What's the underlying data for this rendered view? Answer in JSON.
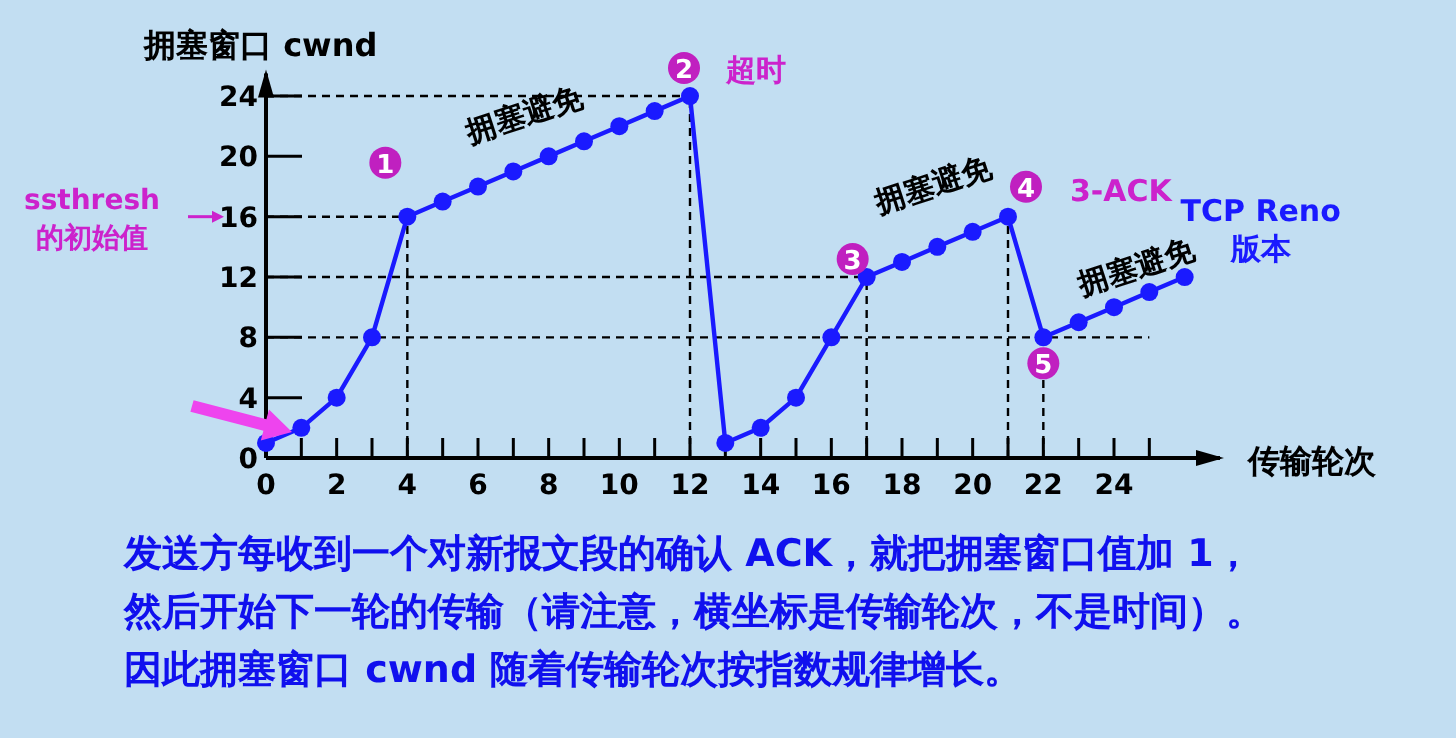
{
  "chart_data": {
    "type": "line",
    "ylabel": "拥塞窗口  cwnd",
    "xlabel": "传输轮次",
    "x": [
      0,
      1,
      2,
      3,
      4,
      5,
      6,
      7,
      8,
      9,
      10,
      11,
      12,
      13,
      14,
      15,
      16,
      17,
      18,
      19,
      20,
      21,
      22,
      23,
      24,
      25,
      26
    ],
    "series": [
      {
        "color": "#1a1aff",
        "values": [
          1,
          2,
          4,
          8,
          16,
          17,
          18,
          19,
          20,
          21,
          22,
          23,
          24,
          1,
          2,
          4,
          8,
          12,
          13,
          14,
          15,
          16,
          8,
          9,
          10,
          11,
          12
        ]
      }
    ],
    "marker": "circle",
    "line_style": "solid",
    "xlim": [
      0,
      27
    ],
    "ylim": [
      0,
      25.5
    ],
    "xticks": [
      0,
      {
        "value": 1,
        "label": null
      },
      2,
      {
        "value": 3,
        "label": null
      },
      4,
      {
        "value": 5,
        "label": null
      },
      6,
      {
        "value": 7,
        "label": null
      },
      8,
      {
        "value": 9,
        "label": null
      },
      10,
      {
        "value": 11,
        "label": null
      },
      12,
      {
        "value": 13,
        "label": null
      },
      14,
      {
        "value": 15,
        "label": null
      },
      16,
      {
        "value": 17,
        "label": null
      },
      18,
      {
        "value": 19,
        "label": null
      },
      20,
      {
        "value": 21,
        "label": null
      },
      22,
      {
        "value": 23,
        "label": null
      },
      24,
      {
        "value": 25,
        "label": null
      }
    ],
    "yticks": [
      0,
      4,
      8,
      12,
      16,
      20,
      24
    ],
    "ref_lines": [
      {
        "axis": "y",
        "value": 24,
        "line_style": "dashed",
        "color": "#000000"
      },
      {
        "axis": "y",
        "value": 16,
        "line_style": "dashed",
        "color": "#000000"
      },
      {
        "axis": "y",
        "value": 12,
        "line_style": "dashed",
        "color": "#000000"
      },
      {
        "axis": "y",
        "value": 8,
        "line_style": "dashed",
        "color": "#000000"
      },
      {
        "axis": "x",
        "value": 4,
        "line_style": "dashed",
        "color": "#000000"
      },
      {
        "axis": "x",
        "value": 12,
        "line_style": "dashed",
        "color": "#000000"
      },
      {
        "axis": "x",
        "value": 17,
        "line_style": "dashed",
        "color": "#000000"
      },
      {
        "axis": "x",
        "value": 21,
        "line_style": "dashed",
        "color": "#000000"
      },
      {
        "axis": "x",
        "value": 22,
        "line_style": "dashed",
        "color": "#000000"
      }
    ],
    "annotations": [
      {
        "text": "1",
        "x": 4,
        "y": 16
      },
      {
        "text": "拥塞避免",
        "x": 6,
        "y": 18
      },
      {
        "text": "2",
        "x": 12,
        "y": 24
      },
      {
        "text": "超时",
        "x": 12,
        "y": 24
      },
      {
        "text": "3",
        "x": 17,
        "y": 12
      },
      {
        "text": "拥塞避免",
        "x": 19,
        "y": 14
      },
      {
        "text": "4",
        "x": 21,
        "y": 16
      },
      {
        "text": "3-ACK",
        "x": 21,
        "y": 16
      },
      {
        "text": "5",
        "x": 22,
        "y": 8
      },
      {
        "text": "拥塞避免",
        "x": 24,
        "y": 10
      },
      {
        "text": "TCP Reno\n版本",
        "x": 26,
        "y": 12
      },
      "ssthresh\n的初始值",
      "发送方每收到一个对新报文段的确认 ACK，就把拥塞窗口值加 1，",
      "然后开始下一轮的传输（请注意，横坐标是传输轮次，不是时间）。",
      "因此拥塞窗口 cwnd 随着传输轮次按指数规律增长。"
    ]
  }
}
